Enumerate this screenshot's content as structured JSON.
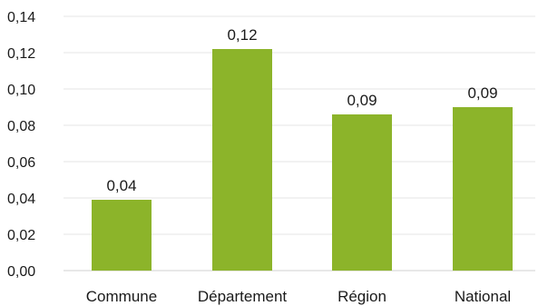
{
  "chart_data": {
    "type": "bar",
    "categories": [
      "Commune",
      "Département",
      "Région",
      "National"
    ],
    "values": [
      0.039,
      0.122,
      0.086,
      0.09
    ],
    "data_labels": [
      "0,04",
      "0,12",
      "0,09",
      "0,09"
    ],
    "ylim": [
      0,
      0.14
    ],
    "yticks": [
      0,
      0.02,
      0.04,
      0.06,
      0.08,
      0.1,
      0.12,
      0.14
    ],
    "ytick_labels": [
      "0,00",
      "0,02",
      "0,04",
      "0,06",
      "0,08",
      "0,10",
      "0,12",
      "0,14"
    ],
    "grid": true,
    "bar_color": "#8cb42a",
    "title": "",
    "xlabel": "",
    "ylabel": ""
  }
}
